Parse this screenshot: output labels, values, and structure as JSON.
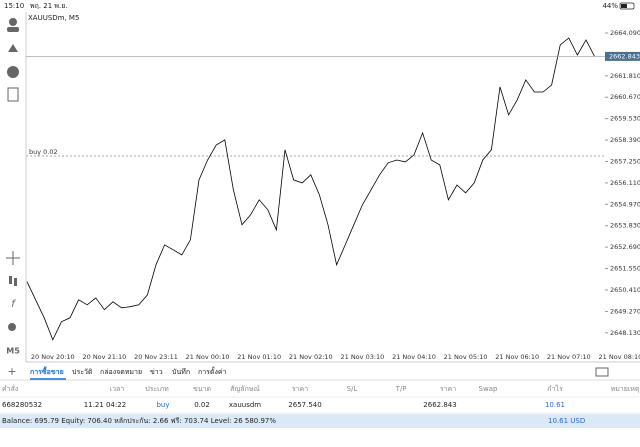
{
  "status_bar": {
    "time": "15:10",
    "date": "พฤ. 21 พ.ย.",
    "battery": "44%"
  },
  "chart_data": {
    "type": "line",
    "title": "XAUUSDm, M5",
    "categories": [
      null,
      null,
      null,
      "20 Nov 20:10",
      null,
      null,
      null,
      null,
      null,
      "20 Nov 21:10",
      null,
      null,
      null,
      null,
      null,
      "20 Nov 23:11",
      null,
      null,
      null,
      null,
      null,
      "21 Nov 00:10",
      null,
      null,
      null,
      null,
      null,
      "21 Nov 01:10",
      null,
      null,
      null,
      null,
      null,
      "21 Nov 02:10",
      null,
      null,
      null,
      null,
      null,
      "21 Nov 03:10",
      null,
      null,
      null,
      null,
      null,
      "21 Nov 04:10",
      null,
      null,
      null,
      null,
      null,
      "21 Nov 05:10",
      null,
      null,
      null,
      null,
      null,
      "21 Nov 06:10",
      null,
      null,
      null,
      null,
      null,
      "21 Nov 07:10",
      null,
      null,
      null,
      null,
      null,
      "21 Nov 08:10"
    ],
    "values": [
      2650.85,
      2649.89,
      2648.93,
      2647.76,
      2648.72,
      2648.93,
      2649.89,
      2649.62,
      2649.99,
      2649.36,
      2649.78,
      2649.46,
      2649.52,
      2649.62,
      2650.15,
      2651.75,
      2652.81,
      2652.55,
      2652.28,
      2653.08,
      2656.27,
      2657.33,
      2658.13,
      2658.4,
      2655.74,
      2653.88,
      2654.41,
      2655.21,
      2654.68,
      2653.61,
      2657.87,
      2656.27,
      2656.11,
      2656.54,
      2655.47,
      2653.88,
      2651.75,
      2652.81,
      2653.88,
      2654.94,
      2655.74,
      2656.54,
      2657.18,
      2657.33,
      2657.23,
      2657.6,
      2658.77,
      2657.33,
      2657.07,
      2655.21,
      2656.0,
      2655.58,
      2656.11,
      2657.33,
      2657.87,
      2661.22,
      2659.73,
      2660.53,
      2661.59,
      2660.95,
      2660.95,
      2661.32,
      2663.45,
      2663.82,
      2662.92,
      2663.72,
      2662.843,
      null,
      null,
      null
    ],
    "color": "#000000",
    "ylim": [
      2647.11,
      2665.1
    ],
    "yticks": [
      {
        "value": 2664.09,
        "label": "2664.090"
      },
      {
        "value": 2661.81,
        "label": "2661.810"
      },
      {
        "value": 2660.67,
        "label": "2660.670"
      },
      {
        "value": 2659.53,
        "label": "2659.530"
      },
      {
        "value": 2658.39,
        "label": "2658.390"
      },
      {
        "value": 2657.25,
        "label": "2657.250"
      },
      {
        "value": 2656.11,
        "label": "2656.110"
      },
      {
        "value": 2654.97,
        "label": "2654.970"
      },
      {
        "value": 2653.83,
        "label": "2653.830"
      },
      {
        "value": 2652.69,
        "label": "2652.690"
      },
      {
        "value": 2651.55,
        "label": "2651.550"
      },
      {
        "value": 2650.41,
        "label": "2650.410"
      },
      {
        "value": 2649.27,
        "label": "2649.270"
      },
      {
        "value": 2648.13,
        "label": "2648.130"
      }
    ],
    "current_price": 2662.843,
    "buy_level": {
      "value": 2657.54,
      "label": "buy 0.02"
    }
  },
  "tabs": [
    "การซื้อขาย",
    "ประวัติ",
    "กล่องจดหมาย",
    "ข่าว",
    "บันทึก",
    "การตั้งค่า"
  ],
  "table": {
    "headers": [
      "คำสั่ง",
      "เวลา",
      "ประเภท",
      "ขนาด",
      "สัญลักษณ์",
      "ราคา",
      "S/L",
      "T/P",
      "ราคา",
      "Swap",
      "กำไร",
      "หมายเหตุ"
    ],
    "row": {
      "order": "668280532",
      "time": "11.21 04:22",
      "type": "buy",
      "volume": "0.02",
      "symbol": "xauusdm",
      "open_price": "2657.540",
      "price": "2662.843",
      "profit": "10.61"
    }
  },
  "footer": {
    "summary": "Balance: 695.79 Equity: 706.40 หลักประกัน: 2.66 ฟรี: 703.74 Level: 26 580.97%",
    "total": "10.61 USD"
  }
}
